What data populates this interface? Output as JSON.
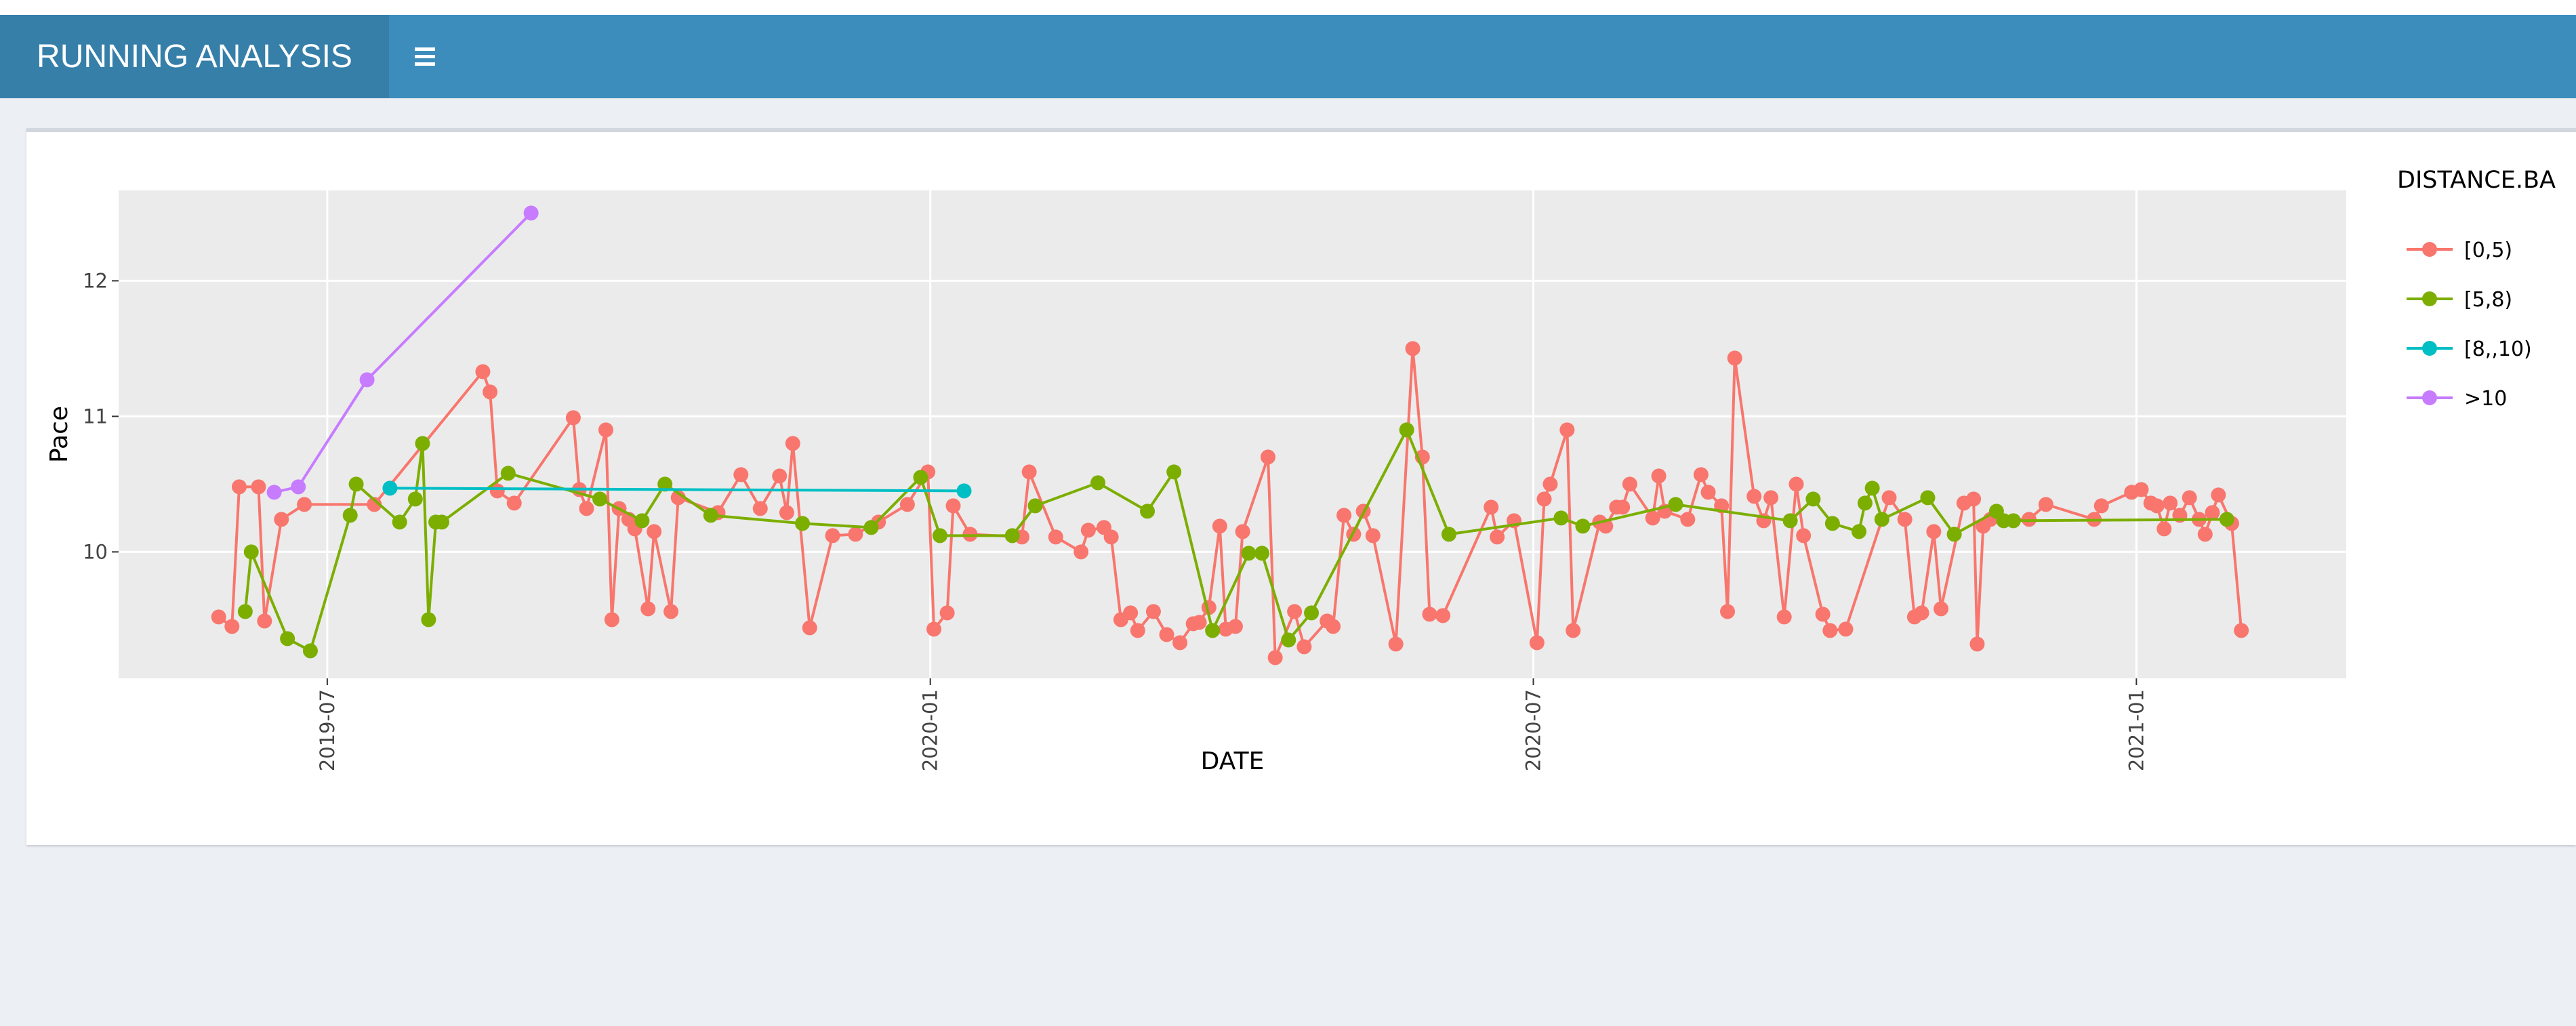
{
  "header": {
    "title": "RUNNING ANALYSIS"
  },
  "chart_data": {
    "type": "line",
    "x_label": "DATE",
    "y_label": "Pace",
    "legend_title": "DISTANCE.BA",
    "legend": "right",
    "grid": true,
    "xlim": [
      2019.327,
      2021.174
    ],
    "xticks": [
      {
        "value": 2019.5,
        "label": "2019-07"
      },
      {
        "value": 2020.0,
        "label": "2020-01"
      },
      {
        "value": 2020.5,
        "label": "2020-07"
      },
      {
        "value": 2021.0,
        "label": "2021-01"
      }
    ],
    "ylim": [
      9.067,
      12.667
    ],
    "yticks": [
      10,
      11,
      12
    ],
    "series": [
      {
        "name": "[0,5)",
        "color": "#F8766D",
        "x": [
          2019.41,
          2019.421,
          2019.427,
          2019.443,
          2019.448,
          2019.462,
          2019.481,
          2019.539,
          2019.629,
          2019.635,
          2019.641,
          2019.655,
          2019.704,
          2019.709,
          2019.715,
          2019.731,
          2019.736,
          2019.742,
          2019.75,
          2019.755,
          2019.766,
          2019.771,
          2019.785,
          2019.791,
          2019.824,
          2019.843,
          2019.859,
          2019.875,
          2019.881,
          2019.886,
          2019.9,
          2019.919,
          2019.938,
          2019.957,
          2019.981,
          2019.998,
          2020.003,
          2020.014,
          2020.019,
          2020.033,
          2020.076,
          2020.082,
          2020.104,
          2020.125,
          2020.131,
          2020.144,
          2020.15,
          2020.158,
          2020.166,
          2020.172,
          2020.185,
          2020.196,
          2020.207,
          2020.218,
          2020.223,
          2020.231,
          2020.24,
          2020.245,
          2020.253,
          2020.259,
          2020.28,
          2020.286,
          2020.302,
          2020.31,
          2020.329,
          2020.334,
          2020.343,
          2020.351,
          2020.359,
          2020.367,
          2020.386,
          2020.4,
          2020.408,
          2020.414,
          2020.425,
          2020.465,
          2020.47,
          2020.484,
          2020.503,
          2020.509,
          2020.514,
          2020.528,
          2020.533,
          2020.555,
          2020.56,
          2020.569,
          2020.574,
          2020.58,
          2020.599,
          2020.604,
          2020.609,
          2020.628,
          2020.639,
          2020.645,
          2020.656,
          2020.661,
          2020.667,
          2020.683,
          2020.691,
          2020.697,
          2020.708,
          2020.718,
          2020.724,
          2020.74,
          2020.746,
          2020.759,
          2020.795,
          2020.808,
          2020.816,
          2020.822,
          2020.832,
          2020.838,
          2020.857,
          2020.865,
          2020.868,
          2020.873,
          2020.879,
          2020.911,
          2020.925,
          2020.965,
          2020.971,
          2020.996,
          2021.004,
          2021.012,
          2021.017,
          2021.023,
          2021.028,
          2021.036,
          2021.044,
          2021.052,
          2021.057,
          2021.063,
          2021.068,
          2021.079,
          2021.087
        ],
        "values": [
          9.52,
          9.45,
          10.48,
          10.48,
          9.49,
          10.24,
          10.35,
          10.35,
          11.33,
          11.18,
          10.45,
          10.36,
          10.99,
          10.46,
          10.32,
          10.9,
          9.5,
          10.32,
          10.24,
          10.17,
          9.58,
          10.15,
          9.56,
          10.4,
          10.29,
          10.57,
          10.32,
          10.56,
          10.29,
          10.8,
          9.44,
          10.12,
          10.13,
          10.22,
          10.35,
          10.59,
          9.43,
          9.55,
          10.34,
          10.13,
          10.11,
          10.59,
          10.11,
          10.0,
          10.16,
          10.18,
          10.11,
          9.5,
          9.55,
          9.42,
          9.56,
          9.39,
          9.33,
          9.47,
          9.48,
          9.59,
          10.19,
          9.43,
          9.45,
          10.15,
          10.7,
          9.22,
          9.56,
          9.3,
          9.49,
          9.45,
          10.27,
          10.13,
          10.3,
          10.12,
          9.32,
          11.5,
          10.7,
          9.54,
          9.53,
          10.33,
          10.11,
          10.23,
          9.33,
          10.39,
          10.5,
          10.9,
          9.42,
          10.22,
          10.19,
          10.33,
          10.33,
          10.5,
          10.25,
          10.56,
          10.3,
          10.24,
          10.57,
          10.44,
          10.34,
          9.56,
          11.43,
          10.41,
          10.23,
          10.4,
          9.52,
          10.5,
          10.12,
          9.54,
          9.42,
          9.43,
          10.4,
          10.24,
          9.52,
          9.55,
          10.15,
          9.58,
          10.36,
          10.39,
          9.32,
          10.19,
          10.24,
          10.24,
          10.35,
          10.24,
          10.34,
          10.44,
          10.46,
          10.36,
          10.34,
          10.17,
          10.36,
          10.27,
          10.4,
          10.24,
          10.13,
          10.29,
          10.42,
          10.21,
          9.42
        ]
      },
      {
        "name": "[5,8)",
        "color": "#7CAE00",
        "x": [
          2019.432,
          2019.437,
          2019.467,
          2019.486,
          2019.519,
          2019.524,
          2019.56,
          2019.573,
          2019.579,
          2019.584,
          2019.59,
          2019.595,
          2019.65,
          2019.726,
          2019.761,
          2019.78,
          2019.818,
          2019.894,
          2019.951,
          2019.992,
          2020.008,
          2020.068,
          2020.087,
          2020.139,
          2020.18,
          2020.202,
          2020.234,
          2020.264,
          2020.275,
          2020.297,
          2020.316,
          2020.395,
          2020.43,
          2020.523,
          2020.541,
          2020.618,
          2020.713,
          2020.732,
          2020.748,
          2020.77,
          2020.775,
          2020.781,
          2020.789,
          2020.827,
          2020.849,
          2020.884,
          2020.89,
          2020.898,
          2021.075
        ],
        "values": [
          9.56,
          10.0,
          9.36,
          9.27,
          10.27,
          10.5,
          10.22,
          10.39,
          10.8,
          9.5,
          10.22,
          10.22,
          10.58,
          10.39,
          10.23,
          10.5,
          10.27,
          10.21,
          10.18,
          10.55,
          10.12,
          10.12,
          10.34,
          10.51,
          10.3,
          10.59,
          9.42,
          9.99,
          9.99,
          9.35,
          9.55,
          10.9,
          10.13,
          10.25,
          10.19,
          10.35,
          10.23,
          10.39,
          10.21,
          10.15,
          10.36,
          10.47,
          10.24,
          10.4,
          10.13,
          10.3,
          10.23,
          10.23,
          10.24
        ]
      },
      {
        "name": "[8,,10)",
        "color": "#00BFC4",
        "x": [
          2019.552,
          2020.028
        ],
        "values": [
          10.47,
          10.45
        ]
      },
      {
        "name": ">10",
        "color": "#C77CFF",
        "x": [
          2019.456,
          2019.476,
          2019.533,
          2019.669
        ],
        "values": [
          10.44,
          10.48,
          11.27,
          12.5
        ]
      }
    ]
  }
}
